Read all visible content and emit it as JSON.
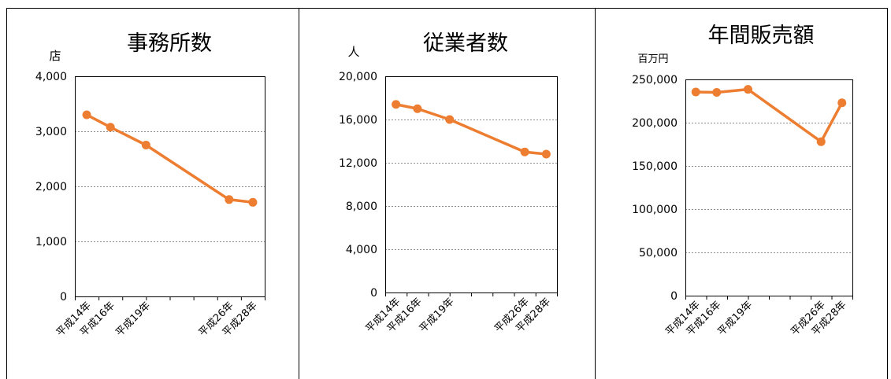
{
  "series_color": "#ED7D31",
  "chart_data": [
    {
      "type": "line",
      "title": "事務所数",
      "unit": "店",
      "ylim": [
        0,
        4000
      ],
      "yticks": [
        "0",
        "1,000",
        "2,000",
        "3,000",
        "4,000"
      ],
      "grid": true,
      "categories": [
        "平成14年",
        "平成16年",
        "平成19年",
        "平成26年",
        "平成28年"
      ],
      "x": [
        14,
        16,
        19,
        26,
        28
      ],
      "xlim": [
        13,
        29
      ],
      "series": [
        {
          "values": [
            3300,
            3075,
            2750,
            1760,
            1710
          ]
        }
      ]
    },
    {
      "type": "line",
      "title": "従業者数",
      "unit": "人",
      "ylim": [
        0,
        20000
      ],
      "yticks": [
        "0",
        "4,000",
        "8,000",
        "12,000",
        "16,000",
        "20,000"
      ],
      "grid": true,
      "categories": [
        "平成14年",
        "平成16年",
        "平成19年",
        "平成26年",
        "平成28年"
      ],
      "x": [
        14,
        16,
        19,
        26,
        28
      ],
      "xlim": [
        13,
        29
      ],
      "series": [
        {
          "values": [
            17400,
            17000,
            16000,
            13000,
            12800
          ]
        }
      ]
    },
    {
      "type": "line",
      "title": "年間販売額",
      "unit": "百万円",
      "ylim": [
        0,
        250000
      ],
      "yticks": [
        "0",
        "50,000",
        "100,000",
        "150,000",
        "200,000",
        "250,000"
      ],
      "grid": true,
      "categories": [
        "平成14年",
        "平成16年",
        "平成19年",
        "平成26年",
        "平成28年"
      ],
      "x": [
        14,
        16,
        19,
        26,
        28
      ],
      "xlim": [
        13,
        29
      ],
      "series": [
        {
          "values": [
            235500,
            235000,
            238500,
            178000,
            223000
          ]
        }
      ]
    }
  ]
}
